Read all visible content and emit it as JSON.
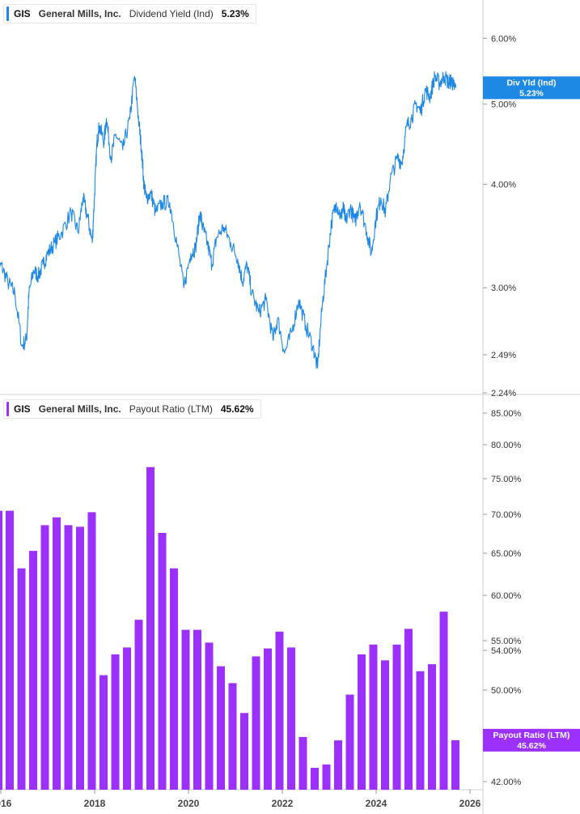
{
  "top_legend": {
    "ticker": "GIS",
    "company": "General Mills, Inc.",
    "metric": "Dividend Yield (Ind)",
    "value": "5.23%",
    "color": "#1e88e5"
  },
  "bottom_legend": {
    "ticker": "GIS",
    "company": "General Mills, Inc.",
    "metric": "Payout Ratio (LTM)",
    "value": "45.62%",
    "color": "#9b30ff"
  },
  "chart_data": [
    {
      "type": "line",
      "series": [
        {
          "name": "Dividend Yield (Ind)",
          "x": [
            2015.9,
            2016.0,
            2016.15,
            2016.3,
            2016.45,
            2016.55,
            2016.6,
            2016.7,
            2016.8,
            2016.9,
            2017.0,
            2017.15,
            2017.3,
            2017.5,
            2017.65,
            2017.75,
            2017.85,
            2017.95,
            2018.0,
            2018.05,
            2018.1,
            2018.2,
            2018.25,
            2018.35,
            2018.45,
            2018.6,
            2018.75,
            2018.85,
            2018.95,
            2019.0,
            2019.05,
            2019.1,
            2019.2,
            2019.3,
            2019.45,
            2019.6,
            2019.75,
            2019.9,
            2020.05,
            2020.15,
            2020.25,
            2020.3,
            2020.4,
            2020.5,
            2020.6,
            2020.75,
            2020.9,
            2021.05,
            2021.15,
            2021.25,
            2021.35,
            2021.5,
            2021.65,
            2021.8,
            2021.9,
            2022.05,
            2022.2,
            2022.35,
            2022.5,
            2022.65,
            2022.75,
            2022.85,
            2022.95,
            2023.05,
            2023.15,
            2023.25,
            2023.3,
            2023.35,
            2023.45,
            2023.55,
            2023.65,
            2023.8,
            2023.9,
            2024.0,
            2024.1,
            2024.2,
            2024.3,
            2024.45,
            2024.55,
            2024.65,
            2024.75,
            2024.85,
            2024.95,
            2025.05,
            2025.15,
            2025.25,
            2025.35,
            2025.45,
            2025.55,
            2025.6,
            2025.65,
            2025.7
          ],
          "values": [
            3.05,
            3.2,
            3.05,
            2.95,
            2.55,
            2.6,
            2.95,
            3.15,
            3.1,
            3.2,
            3.3,
            3.4,
            3.5,
            3.7,
            3.5,
            3.85,
            3.65,
            3.4,
            3.9,
            4.5,
            4.7,
            4.5,
            4.8,
            4.3,
            4.6,
            4.4,
            4.8,
            5.4,
            4.7,
            4.4,
            4.0,
            3.85,
            3.9,
            3.7,
            3.8,
            3.8,
            3.4,
            3.0,
            3.3,
            3.35,
            3.7,
            3.55,
            3.4,
            3.2,
            3.45,
            3.55,
            3.4,
            3.25,
            3.05,
            3.2,
            2.95,
            2.8,
            2.9,
            2.6,
            2.75,
            2.5,
            2.65,
            2.9,
            2.7,
            2.55,
            2.4,
            2.85,
            3.2,
            3.6,
            3.8,
            3.65,
            3.75,
            3.6,
            3.75,
            3.6,
            3.8,
            3.5,
            3.3,
            3.65,
            3.85,
            3.7,
            4.05,
            4.3,
            4.25,
            4.7,
            4.8,
            5.0,
            4.9,
            5.2,
            5.1,
            5.4,
            5.3,
            5.4,
            5.3,
            5.35,
            5.25,
            5.23
          ]
        }
      ],
      "ylim": [
        2.24,
        6.6
      ],
      "y_scale": "log",
      "yticks": [
        "6.00%",
        "5.00%",
        "4.00%",
        "3.00%",
        "2.49%",
        "2.24%"
      ],
      "ytick_values": [
        6.0,
        5.0,
        4.0,
        3.0,
        2.49,
        2.24
      ],
      "last_label": [
        "Div Yld (Ind)",
        "5.23%"
      ],
      "last_value": 5.23
    },
    {
      "type": "bar",
      "series": [
        {
          "name": "Payout Ratio (LTM)",
          "x": [
            2016.0,
            2016.25,
            2016.5,
            2016.75,
            2017.0,
            2017.25,
            2017.5,
            2017.75,
            2018.0,
            2018.25,
            2018.5,
            2018.75,
            2019.0,
            2019.25,
            2019.5,
            2019.75,
            2020.0,
            2020.25,
            2020.5,
            2020.75,
            2021.0,
            2021.25,
            2021.5,
            2021.75,
            2022.0,
            2022.25,
            2022.5,
            2022.75,
            2023.0,
            2023.25,
            2023.5,
            2023.75,
            2024.0,
            2024.25,
            2024.5,
            2024.75,
            2025.0,
            2025.25,
            2025.5
          ],
          "values": [
            70.5,
            63.2,
            65.3,
            68.6,
            69.6,
            68.6,
            68.4,
            70.3,
            51.5,
            53.6,
            54.3,
            57.3,
            76.7,
            67.6,
            63.2,
            56.2,
            56.2,
            54.8,
            52.4,
            50.7,
            48.0,
            53.4,
            54.2,
            56.0,
            54.3,
            45.9,
            43.2,
            43.5,
            45.6,
            49.6,
            53.6,
            54.6,
            53.0,
            54.6,
            56.3,
            51.9,
            52.6,
            58.2,
            45.62
          ]
        }
      ],
      "leading_partial_bar": 70.5,
      "ylim": [
        41.5,
        86.0
      ],
      "y_scale": "nonlinear",
      "yticks": [
        "85.00%",
        "80.00%",
        "75.00%",
        "70.00%",
        "65.00%",
        "60.00%",
        "55.00%",
        "54.00%",
        "50.00%",
        "42.00%"
      ],
      "ytick_values": [
        85,
        80,
        75,
        70,
        65,
        60,
        55,
        54,
        50,
        42
      ],
      "last_label": [
        "Payout Ratio (LTM)",
        "45.62%"
      ],
      "last_value": 45.62,
      "xticks": [
        "2016",
        "2018",
        "2020",
        "2022",
        "2024",
        "2026"
      ],
      "xtick_values": [
        2016,
        2018,
        2020,
        2022,
        2024,
        2026
      ]
    }
  ]
}
